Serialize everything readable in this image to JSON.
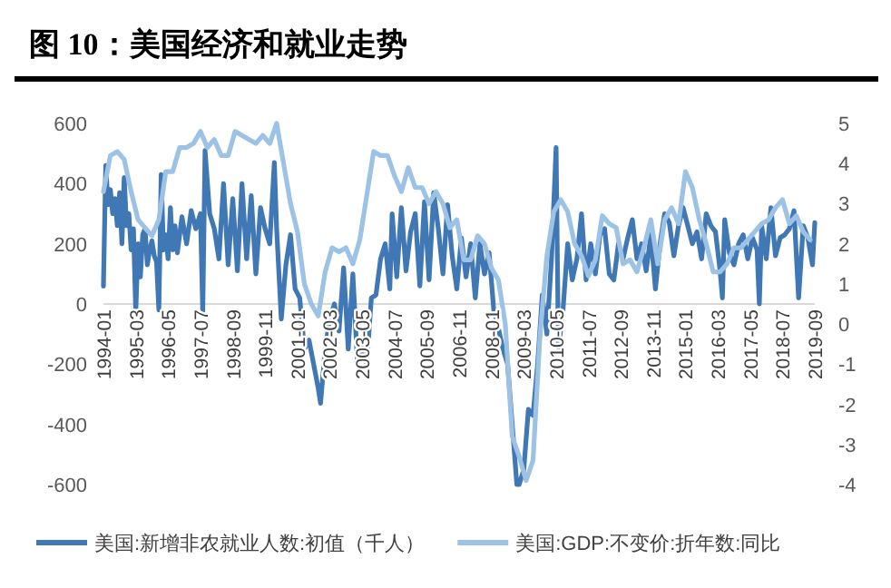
{
  "chart_data": {
    "type": "line",
    "title": "图 10：美国经济和就业走势",
    "xlim": [
      "1994-01",
      "2019-09"
    ],
    "xticks": [
      "1994-01",
      "1995-03",
      "1996-05",
      "1997-07",
      "1998-09",
      "1999-11",
      "2001-01",
      "2002-03",
      "2003-05",
      "2004-07",
      "2005-09",
      "2006-11",
      "2008-01",
      "2009-03",
      "2010-05",
      "2011-07",
      "2012-09",
      "2013-11",
      "2015-01",
      "2016-03",
      "2017-05",
      "2018-07",
      "2019-09"
    ],
    "ylim": [
      -600,
      600
    ],
    "yticks": [
      -600,
      -400,
      -200,
      0,
      200,
      400,
      600
    ],
    "y2lim": [
      -4,
      5
    ],
    "y2ticks": [
      -4,
      -3,
      -2,
      -1,
      0,
      1,
      2,
      3,
      4,
      5
    ],
    "legend": "bottom",
    "series": [
      {
        "name": "美国:新增非农就业人数:初值（千人）",
        "color": "#3f78b5",
        "x": [
          "1994-01",
          "1994-02",
          "1994-03",
          "1994-04",
          "1994-05",
          "1994-06",
          "1994-07",
          "1994-08",
          "1994-09",
          "1994-10",
          "1994-11",
          "1994-12",
          "1995-01",
          "1995-02",
          "1995-03",
          "1995-04",
          "1995-05",
          "1995-06",
          "1995-07",
          "1995-08",
          "1995-09",
          "1995-10",
          "1995-11",
          "1995-12",
          "1996-01",
          "1996-02",
          "1996-03",
          "1996-04",
          "1996-05",
          "1996-06",
          "1996-07",
          "1996-08",
          "1996-09",
          "1996-11",
          "1997-01",
          "1997-03",
          "1997-05",
          "1997-07",
          "1997-08",
          "1997-09",
          "1997-11",
          "1998-01",
          "1998-03",
          "1998-05",
          "1998-07",
          "1998-09",
          "1998-11",
          "1999-01",
          "1999-03",
          "1999-05",
          "1999-07",
          "1999-09",
          "1999-11",
          "2000-01",
          "2000-03",
          "2000-04",
          "2000-06",
          "2000-08",
          "2000-10",
          "2000-12",
          "2001-02",
          "2001-04",
          "2001-06",
          "2001-08",
          "2001-10",
          "2001-11",
          "2002-01",
          "2002-03",
          "2002-05",
          "2002-07",
          "2002-09",
          "2002-11",
          "2003-01",
          "2003-03",
          "2003-05",
          "2003-07",
          "2003-09",
          "2003-11",
          "2004-01",
          "2004-03",
          "2004-05",
          "2004-06",
          "2004-08",
          "2004-10",
          "2004-12",
          "2005-02",
          "2005-04",
          "2005-06",
          "2005-08",
          "2005-10",
          "2005-12",
          "2006-02",
          "2006-04",
          "2006-06",
          "2006-08",
          "2006-10",
          "2006-12",
          "2007-02",
          "2007-04",
          "2007-06",
          "2007-08",
          "2007-10",
          "2007-12",
          "2008-02",
          "2008-04",
          "2008-06",
          "2008-08",
          "2008-10",
          "2008-12",
          "2009-01",
          "2009-03",
          "2009-05",
          "2009-07",
          "2009-09",
          "2009-11",
          "2010-01",
          "2010-03",
          "2010-05",
          "2010-06",
          "2010-08",
          "2010-10",
          "2010-12",
          "2011-02",
          "2011-04",
          "2011-06",
          "2011-08",
          "2011-10",
          "2011-12",
          "2012-02",
          "2012-04",
          "2012-06",
          "2012-08",
          "2012-10",
          "2012-12",
          "2013-02",
          "2013-04",
          "2013-06",
          "2013-08",
          "2013-10",
          "2013-12",
          "2014-02",
          "2014-04",
          "2014-06",
          "2014-08",
          "2014-10",
          "2014-12",
          "2015-02",
          "2015-04",
          "2015-06",
          "2015-08",
          "2015-10",
          "2015-12",
          "2016-02",
          "2016-04",
          "2016-05",
          "2016-06",
          "2016-08",
          "2016-10",
          "2016-12",
          "2017-02",
          "2017-04",
          "2017-06",
          "2017-08",
          "2017-09",
          "2017-10",
          "2017-12",
          "2018-02",
          "2018-04",
          "2018-06",
          "2018-08",
          "2018-10",
          "2018-12",
          "2019-02",
          "2019-04",
          "2019-06",
          "2019-08",
          "2019-09"
        ],
        "values": [
          60,
          460,
          330,
          380,
          300,
          350,
          260,
          370,
          200,
          420,
          260,
          300,
          180,
          250,
          -30,
          200,
          90,
          230,
          250,
          130,
          180,
          210,
          160,
          140,
          -20,
          430,
          180,
          230,
          150,
          320,
          180,
          260,
          170,
          290,
          200,
          310,
          250,
          300,
          -30,
          510,
          300,
          250,
          150,
          400,
          130,
          350,
          110,
          400,
          150,
          360,
          100,
          320,
          250,
          200,
          470,
          250,
          -50,
          130,
          230,
          50,
          20,
          -150,
          -120,
          -200,
          -280,
          -330,
          -150,
          -50,
          0,
          -90,
          120,
          -150,
          100,
          -200,
          -130,
          -200,
          20,
          30,
          150,
          200,
          50,
          300,
          90,
          320,
          110,
          240,
          300,
          60,
          340,
          80,
          370,
          250,
          100,
          330,
          160,
          50,
          220,
          90,
          200,
          20,
          200,
          100,
          170,
          -20,
          -80,
          -150,
          -200,
          -400,
          -600,
          -600,
          -550,
          -350,
          -370,
          -200,
          30,
          -100,
          150,
          520,
          -150,
          -20,
          200,
          80,
          150,
          300,
          80,
          200,
          100,
          230,
          250,
          100,
          80,
          200,
          150,
          220,
          280,
          150,
          200,
          110,
          230,
          50,
          200,
          300,
          270,
          160,
          260,
          320,
          260,
          200,
          240,
          150,
          300,
          260,
          240,
          110,
          20,
          280,
          170,
          130,
          200,
          230,
          150,
          220,
          180,
          0,
          260,
          150,
          320,
          160,
          220,
          230,
          250,
          310,
          20,
          260,
          220,
          130,
          270
        ]
      },
      {
        "name": "美国:GDP:不变价:折年数:同比",
        "color": "#9cc2e5",
        "axis": "y2",
        "x": [
          "1994-01",
          "1994-04",
          "1994-07",
          "1994-10",
          "1995-01",
          "1995-04",
          "1995-07",
          "1995-10",
          "1996-01",
          "1996-04",
          "1996-07",
          "1996-10",
          "1997-01",
          "1997-04",
          "1997-07",
          "1997-10",
          "1998-01",
          "1998-04",
          "1998-07",
          "1998-10",
          "1999-01",
          "1999-04",
          "1999-07",
          "1999-10",
          "2000-01",
          "2000-04",
          "2000-07",
          "2000-10",
          "2001-01",
          "2001-04",
          "2001-07",
          "2001-10",
          "2002-01",
          "2002-04",
          "2002-07",
          "2002-10",
          "2003-01",
          "2003-04",
          "2003-07",
          "2003-10",
          "2004-01",
          "2004-04",
          "2004-07",
          "2004-10",
          "2005-01",
          "2005-04",
          "2005-07",
          "2005-10",
          "2006-01",
          "2006-04",
          "2006-07",
          "2006-10",
          "2007-01",
          "2007-04",
          "2007-07",
          "2007-10",
          "2008-01",
          "2008-04",
          "2008-07",
          "2008-10",
          "2009-01",
          "2009-04",
          "2009-07",
          "2009-10",
          "2010-01",
          "2010-04",
          "2010-07",
          "2010-10",
          "2011-01",
          "2011-04",
          "2011-07",
          "2011-10",
          "2012-01",
          "2012-04",
          "2012-07",
          "2012-10",
          "2013-01",
          "2013-04",
          "2013-07",
          "2013-10",
          "2014-01",
          "2014-04",
          "2014-07",
          "2014-10",
          "2015-01",
          "2015-04",
          "2015-07",
          "2015-10",
          "2016-01",
          "2016-04",
          "2016-07",
          "2016-10",
          "2017-01",
          "2017-04",
          "2017-07",
          "2017-10",
          "2018-01",
          "2018-04",
          "2018-07",
          "2018-10",
          "2019-01",
          "2019-04",
          "2019-07"
        ],
        "values": [
          3.3,
          4.2,
          4.3,
          4.1,
          3.3,
          2.6,
          2.4,
          2.2,
          2.6,
          3.8,
          3.8,
          4.4,
          4.4,
          4.5,
          4.8,
          4.4,
          4.6,
          4.2,
          4.2,
          4.8,
          4.7,
          4.6,
          4.5,
          4.7,
          4.5,
          5.0,
          4.0,
          3.0,
          2.3,
          1.0,
          0.5,
          0.2,
          1.3,
          1.9,
          1.8,
          1.9,
          1.5,
          2.1,
          3.2,
          4.3,
          4.2,
          4.2,
          3.7,
          3.3,
          3.9,
          3.4,
          3.4,
          3.0,
          3.3,
          3.0,
          2.4,
          2.6,
          1.6,
          1.6,
          2.2,
          2.0,
          1.4,
          1.1,
          0.0,
          -2.8,
          -3.3,
          -3.9,
          -3.4,
          -0.3,
          1.7,
          2.8,
          3.1,
          2.8,
          2.0,
          1.7,
          1.2,
          1.6,
          2.7,
          2.5,
          2.4,
          1.5,
          1.6,
          1.3,
          1.9,
          2.6,
          1.5,
          2.6,
          2.9,
          2.5,
          3.8,
          3.4,
          2.6,
          2.0,
          1.3,
          1.3,
          1.5,
          1.9,
          1.9,
          2.1,
          2.3,
          2.5,
          2.6,
          2.9,
          3.1,
          2.5,
          2.7,
          2.3,
          2.1
        ]
      }
    ]
  }
}
